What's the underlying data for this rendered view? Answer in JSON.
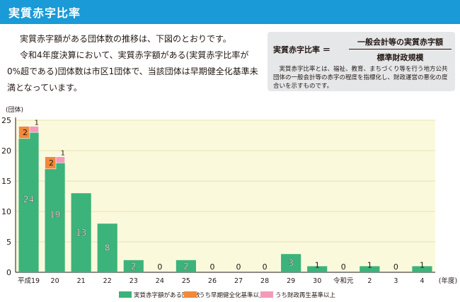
{
  "header": {
    "title": "実質赤字比率"
  },
  "intro": {
    "paragraphs": [
      "実質赤字額がある団体数の推移は、下図のとおりです。",
      "令和4年度決算において、実質赤字額がある(実質赤字比率が0%超である)団体数は市区1団体で、当該団体は早期健全化基準未満となっています。"
    ]
  },
  "definition": {
    "term": "実質赤字比率 ＝",
    "numerator": "一般会計等の実質赤字額",
    "denominator": "標準財政規模",
    "description": "実質赤字比率とは、福祉、教育、まちづくり等を行う地方公共団体の一般会計等の赤字の程度を指標化し、財政運営の悪化の度合いを示すものです。"
  },
  "colors": {
    "green": "#3cb37a",
    "orange": "#f08a3a",
    "pink": "#f49ab8",
    "plot_bg": "#fbf9dc",
    "grid": "#e6e2b0"
  },
  "chart_data": {
    "type": "bar",
    "ylabel": "(団体)",
    "xlabel": "(年度)",
    "ylim": [
      0,
      25
    ],
    "yticks": [
      0,
      5,
      10,
      15,
      20,
      25
    ],
    "categories": [
      "平成19",
      "20",
      "21",
      "22",
      "23",
      "24",
      "25",
      "26",
      "27",
      "28",
      "29",
      "30",
      "令和元",
      "2",
      "3",
      "4"
    ],
    "series": [
      {
        "name": "実質赤字額がある団体数",
        "values": [
          24,
          19,
          13,
          8,
          2,
          0,
          2,
          0,
          0,
          0,
          3,
          1,
          0,
          1,
          0,
          1
        ]
      },
      {
        "name": "うち早期健全化基準以上",
        "values": [
          2,
          2,
          0,
          0,
          0,
          0,
          0,
          0,
          0,
          0,
          0,
          0,
          0,
          0,
          0,
          0
        ]
      },
      {
        "name": "うち財政再生基準以上",
        "values": [
          1,
          1,
          0,
          0,
          0,
          0,
          0,
          0,
          0,
          0,
          0,
          0,
          0,
          0,
          0,
          0
        ]
      }
    ],
    "legend_position": "bottom"
  }
}
